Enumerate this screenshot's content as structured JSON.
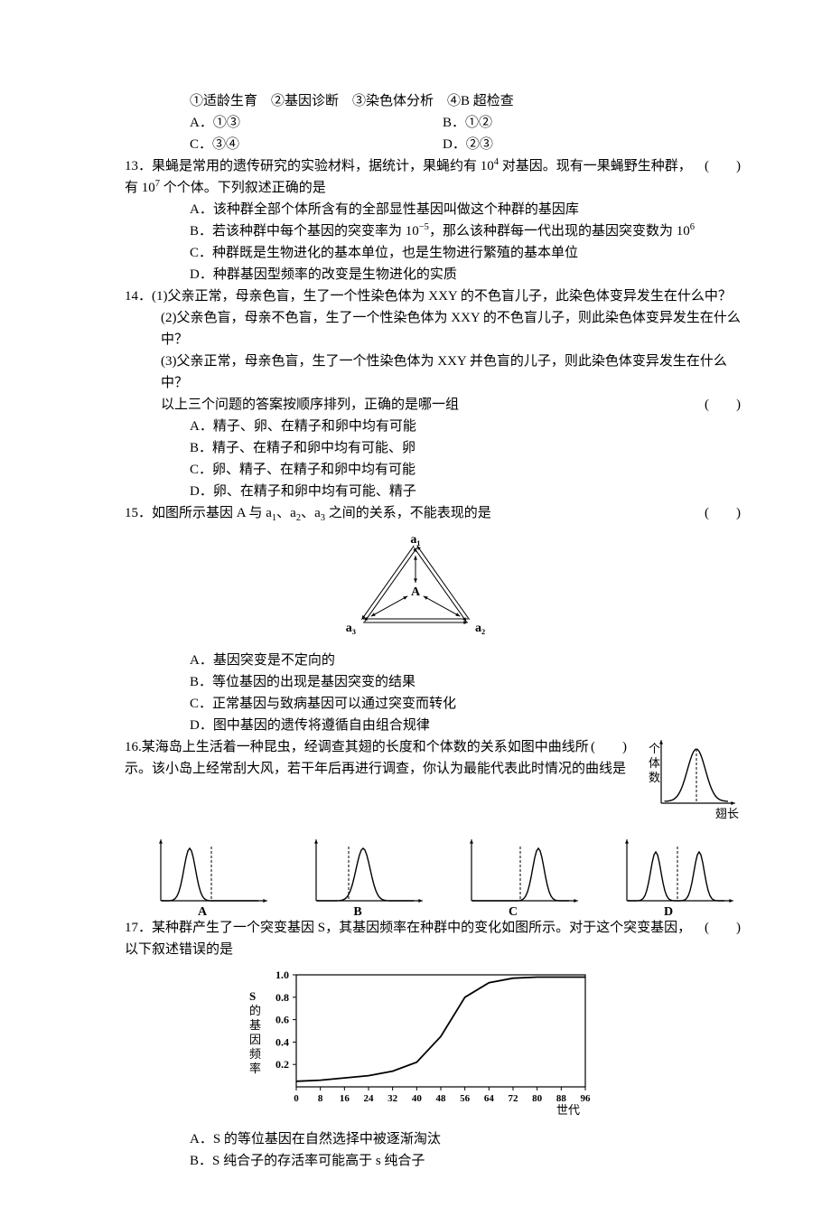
{
  "q12_options_line": "①适龄生育　②基因诊断　③染色体分析　④B 超检查",
  "q12_A": "A．①③",
  "q12_B": "B．①②",
  "q12_C": "C．③④",
  "q12_D": "D．②③",
  "q13_stem1": "13．果蝇是常用的遗传研究的实验材料，据统计，果蝇约有 10",
  "q13_stem1_sup": "4",
  "q13_stem1_tail": " 对基因。现有一果蝇野生种群，有 10",
  "q13_stem1_sup2": "7",
  "q13_stem1_tail2": " 个个体。下列叙述正确的是",
  "q13_bracket": "(　　)",
  "q13_A": "A．该种群全部个体所含有的全部显性基因叫做这个种群的基因库",
  "q13_B_pre": "B．若该种群中每个基因的突变率为 10",
  "q13_B_sup": "−5",
  "q13_B_mid": "，那么该种群每一代出现的基因突变数为 10",
  "q13_B_sup2": "6",
  "q13_C": "C．种群既是生物进化的基本单位，也是生物进行繁殖的基本单位",
  "q13_D": "D．种群基因型频率的改变是生物进化的实质",
  "q14_l1": "14．(1)父亲正常，母亲色盲，生了一个性染色体为 XXY 的不色盲儿子，此染色体变异发生在什么中？",
  "q14_l2": "(2)父亲色盲，母亲不色盲，生了一个性染色体为 XXY 的不色盲儿子，则此染色体变异发生在什么中？",
  "q14_l3": "(3)父亲正常，母亲色盲，生了一个性染色体为 XXY 并色盲的儿子，则此染色体变异发生在什么中？",
  "q14_l4": "以上三个问题的答案按顺序排列，正确的是哪一组",
  "q14_bracket": "(　　)",
  "q14_A": "A．精子、卵、在精子和卵中均有可能",
  "q14_B": "B．精子、在精子和卵中均有可能、卵",
  "q14_C": "C．卵、精子、在精子和卵中均有可能",
  "q14_D": "D．卵、在精子和卵中均有可能、精子",
  "q15_pre": "15．如图所示基因 A 与 a",
  "q15_sub1": "1",
  "q15_mid1": "、a",
  "q15_sub2": "2",
  "q15_mid2": "、a",
  "q15_sub3": "3",
  "q15_tail": " 之间的关系，不能表现的是",
  "q15_bracket": "(　　)",
  "triangle": {
    "top": "a₁",
    "center": "A",
    "left": "a₃",
    "right": "a₂",
    "stroke": "#000000",
    "fill": "none",
    "font": "bold 14px serif"
  },
  "q15_A": "A．基因突变是不定向的",
  "q15_B": "B．等位基因的出现是基因突变的结果",
  "q15_C": "C．正常基因与致病基因可以通过突变而转化",
  "q15_D": "D．图中基因的遗传将遵循自由组合规律",
  "q16_l1": "16.某海岛上生活着一种昆虫，经调查其翅的长度和个体数的关系如图中曲线所示。该小岛上经常刮大风，若干年后再进行调查，你认为最能代表此时情况的曲线是",
  "q16_bracket": "(　　)",
  "wing_chart": {
    "ylabel": "个体数",
    "xlabel": "翅长",
    "axis_color": "#000000",
    "curve_color": "#000000",
    "dash_color": "#000000"
  },
  "choices": {
    "A": "A",
    "B": "B",
    "C": "C",
    "D": "D",
    "curve_color": "#000000",
    "axis_color": "#000000"
  },
  "q17_l": "17．某种群产生了一个突变基因 S，其基因频率在种群中的变化如图所示。对于这个突变基因，以下叙述错误的是",
  "q17_bracket": "(　　)",
  "s_chart": {
    "ylabel_chars": [
      "S",
      "的",
      "基",
      "因",
      "频",
      "率"
    ],
    "y_ticks": [
      "0.2",
      "0.4",
      "0.6",
      "0.8",
      "1.0"
    ],
    "x_ticks": [
      "0",
      "8",
      "16",
      "24",
      "32",
      "40",
      "48",
      "56",
      "64",
      "72",
      "80",
      "88",
      "96"
    ],
    "xlabel": "世代",
    "axis_color": "#000000",
    "curve_color": "#000000",
    "y_values_at_ticks": [
      0.05,
      0.06,
      0.08,
      0.1,
      0.14,
      0.22,
      0.45,
      0.8,
      0.93,
      0.97,
      0.98,
      0.98,
      0.98
    ]
  },
  "q17_A": "A．S 的等位基因在自然选择中被逐渐淘汰",
  "q17_B": "B．S 纯合子的存活率可能高于 s 纯合子"
}
